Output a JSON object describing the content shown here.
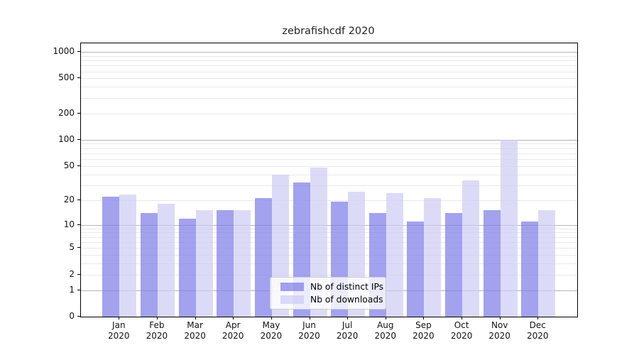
{
  "title": "zebrafishcdf 2020",
  "chart_data": {
    "type": "bar",
    "title": "zebrafishcdf 2020",
    "categories": [
      "Jan 2020",
      "Feb 2020",
      "Mar 2020",
      "Apr 2020",
      "May 2020",
      "Jun 2020",
      "Jul 2020",
      "Aug 2020",
      "Sep 2020",
      "Oct 2020",
      "Nov 2020",
      "Dec 2020"
    ],
    "series": [
      {
        "name": "Nb of distinct IPs",
        "color": "#7a7ae8",
        "values": [
          22,
          14,
          12,
          15,
          21,
          32,
          19,
          14,
          11,
          14,
          15,
          11
        ]
      },
      {
        "name": "Nb of downloads",
        "color": "#ccccf5",
        "values": [
          23,
          18,
          15,
          15,
          40,
          48,
          25,
          24,
          21,
          34,
          100,
          15
        ]
      }
    ],
    "fill_alpha": 0.7,
    "yscale": "log1p",
    "yticks": [
      1000,
      500,
      200,
      100,
      50,
      20,
      10,
      5,
      2,
      1,
      0
    ],
    "ylim": [
      0,
      1259
    ],
    "grid": true,
    "legend_position": "lower center",
    "xlabel": "",
    "ylabel": ""
  },
  "colors": {
    "major_grid": "#b5b5b5",
    "minor_grid": "#e9e9e9",
    "spine": "#000000"
  }
}
